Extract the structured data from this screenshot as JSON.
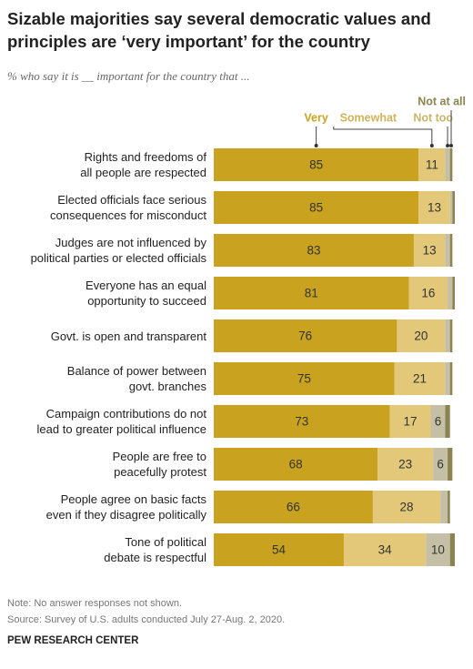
{
  "chart_data": {
    "type": "stacked-bar",
    "title": "Sizable majorities say several democratic values and principles are ‘very important’ for the country",
    "subtitle": "% who say it is __ important for the country that ...",
    "categories": [
      "Rights and freedoms of\nall people are respected",
      "Elected officials face serious\nconsequences for misconduct",
      "Judges are not influenced by\npolitical parties or elected officials",
      "Everyone has an equal\nopportunity to succeed",
      "Govt. is open and transparent",
      "Balance of power between\ngovt. branches",
      "Campaign contributions do not\nlead to greater political influence",
      "People are free to\npeacefully protest",
      "People agree on basic facts\neven if they disagree politically",
      "Tone of political\ndebate is respectful"
    ],
    "series": [
      {
        "name": "Very",
        "color": "#c9a21f",
        "values": [
          85,
          85,
          83,
          81,
          76,
          75,
          73,
          68,
          66,
          54
        ]
      },
      {
        "name": "Somewhat",
        "color": "#e2c878",
        "values": [
          11,
          13,
          13,
          16,
          20,
          21,
          17,
          23,
          28,
          34
        ]
      },
      {
        "name": "Not too",
        "color": "#c5c0a5",
        "values": [
          2,
          1,
          2,
          2,
          2,
          2,
          6,
          6,
          3,
          10
        ]
      },
      {
        "name": "Not at all",
        "color": "#8c8450",
        "values": [
          1,
          1,
          1,
          1,
          1,
          1,
          2,
          2,
          1,
          2
        ]
      }
    ],
    "legend_colors": [
      "#c9a21f",
      "#d0b45a",
      "#c8b56a",
      "#8c8450"
    ],
    "note": "Note: No answer responses not shown.",
    "source": "Source: Survey of U.S. adults conducted July 27-Aug. 2, 2020.",
    "brand": "PEW RESEARCH CENTER"
  }
}
